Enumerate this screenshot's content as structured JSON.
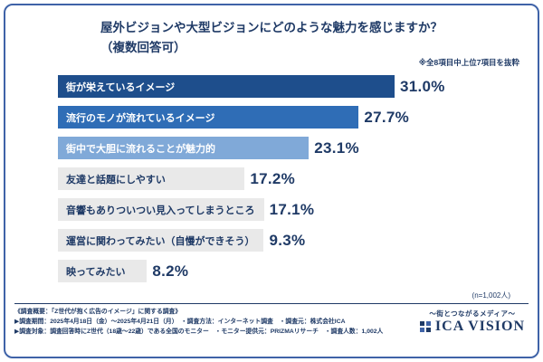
{
  "card": {
    "title_line1": "屋外ビジョンや大型ビジョンにどのような魅力を感じますか？",
    "title_line2": "（複数回答可）",
    "note": "※全8項目中上位7項目を抜粋",
    "sample": "(n=1,002人)"
  },
  "chart_data": {
    "type": "bar",
    "orientation": "horizontal",
    "title": "屋外ビジョンや大型ビジョンにどのような魅力を感じますか？（複数回答可）",
    "note": "※全8項目中上位7項目を抜粋",
    "sample_size": "(n=1,002人)",
    "unit": "%",
    "xlim": [
      0,
      35
    ],
    "categories": [
      "街が栄えているイメージ",
      "流行のモノが流れているイメージ",
      "街中で大胆に流れることが魅力的",
      "友達と話題にしやすい",
      "音響もありついつい見入ってしまうところ",
      "運営に関わってみたい（自慢ができそう）",
      "映ってみたい"
    ],
    "values": [
      31.0,
      27.7,
      23.1,
      17.2,
      17.1,
      9.3,
      8.2
    ],
    "value_labels": [
      "31.0%",
      "27.7%",
      "23.1%",
      "17.2%",
      "17.1%",
      "9.3%",
      "8.2%"
    ],
    "bar_colors": [
      "#1e4e8c",
      "#2f6db6",
      "#80a9d8",
      "#e9e9e9",
      "#e9e9e9",
      "#e9e9e9",
      "#e9e9e9"
    ],
    "label_colors": [
      "#ffffff",
      "#ffffff",
      "#ffffff",
      "#1f3a66",
      "#1f3a66",
      "#1f3a66",
      "#1f3a66"
    ],
    "accent_color": "#1f3a66"
  },
  "footer": {
    "line1": "《調査概要：「Z世代が抱く広告のイメージ」に関する調査》",
    "line2": "▶調査期間：2025年4月18日（金）〜2025年4月21日（月）　・調査方法：インターネット調査　・調査元：株式会社ICA",
    "line3": "▶調査対象：調査回答時にZ世代（18歳〜22歳）である全国のモニター　・モニター提供元：PRIZMAリサーチ　・調査人数：1,002人",
    "logo_tagline": "〜街とつながるメディア〜",
    "logo_name": "ICA VISION"
  }
}
